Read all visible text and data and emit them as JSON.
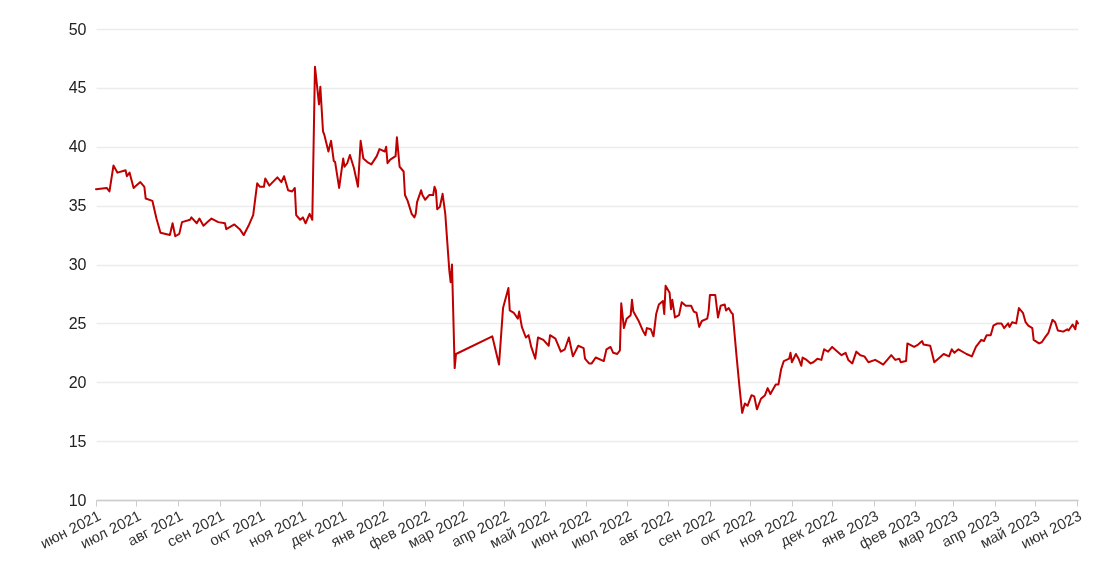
{
  "chart_data": {
    "type": "line",
    "x": [
      "2021-06-01",
      "2021-06-09",
      "2021-06-11",
      "2021-06-14",
      "2021-06-17",
      "2021-06-23",
      "2021-06-24",
      "2021-06-26",
      "2021-06-29",
      "2021-07-01",
      "2021-07-04",
      "2021-07-07",
      "2021-07-08",
      "2021-07-13",
      "2021-07-16",
      "2021-07-19",
      "2021-07-26",
      "2021-07-28",
      "2021-07-30",
      "2021-08-02",
      "2021-08-04",
      "2021-08-10",
      "2021-08-11",
      "2021-08-15",
      "2021-08-17",
      "2021-08-20",
      "2021-08-23",
      "2021-08-26",
      "2021-08-31",
      "2021-09-05",
      "2021-09-06",
      "2021-09-12",
      "2021-09-16",
      "2021-09-19",
      "2021-09-23",
      "2021-09-26",
      "2021-09-29",
      "2021-10-01",
      "2021-10-04",
      "2021-10-05",
      "2021-10-08",
      "2021-10-14",
      "2021-10-17",
      "2021-10-19",
      "2021-10-22",
      "2021-10-25",
      "2021-10-27",
      "2021-10-28",
      "2021-10-31",
      "2021-11-02",
      "2021-11-04",
      "2021-11-07",
      "2021-11-09",
      "2021-11-11",
      "2021-11-14",
      "2021-11-15",
      "2021-11-17",
      "2021-11-18",
      "2021-11-21",
      "2021-11-23",
      "2021-11-25",
      "2021-11-26",
      "2021-11-29",
      "2021-12-02",
      "2021-12-03",
      "2021-12-05",
      "2021-12-07",
      "2021-12-10",
      "2021-12-13",
      "2021-12-15",
      "2021-12-17",
      "2021-12-20",
      "2021-12-23",
      "2021-12-27",
      "2021-12-29",
      "2022-01-02",
      "2022-01-03",
      "2022-01-04",
      "2022-01-06",
      "2022-01-10",
      "2022-01-11",
      "2022-01-13",
      "2022-01-16",
      "2022-01-17",
      "2022-01-19",
      "2022-01-22",
      "2022-01-24",
      "2022-01-25",
      "2022-01-26",
      "2022-01-29",
      "2022-01-30",
      "2022-02-01",
      "2022-02-04",
      "2022-02-07",
      "2022-02-08",
      "2022-02-09",
      "2022-02-10",
      "2022-02-12",
      "2022-02-14",
      "2022-02-16",
      "2022-02-19",
      "2022-02-20",
      "2022-02-21",
      "2022-02-23",
      "2022-02-24",
      "2022-03-23",
      "2022-03-28",
      "2022-03-31",
      "2022-04-04",
      "2022-04-05",
      "2022-04-08",
      "2022-04-11",
      "2022-04-12",
      "2022-04-14",
      "2022-04-17",
      "2022-04-19",
      "2022-04-21",
      "2022-04-24",
      "2022-04-26",
      "2022-04-30",
      "2022-05-04",
      "2022-05-05",
      "2022-05-09",
      "2022-05-13",
      "2022-05-16",
      "2022-05-19",
      "2022-05-22",
      "2022-05-26",
      "2022-05-30",
      "2022-05-31",
      "2022-06-03",
      "2022-06-05",
      "2022-06-08",
      "2022-06-14",
      "2022-06-16",
      "2022-06-19",
      "2022-06-21",
      "2022-06-24",
      "2022-06-26",
      "2022-06-27",
      "2022-06-29",
      "2022-07-01",
      "2022-07-04",
      "2022-07-05",
      "2022-07-06",
      "2022-07-10",
      "2022-07-13",
      "2022-07-15",
      "2022-07-16",
      "2022-07-19",
      "2022-07-21",
      "2022-07-23",
      "2022-07-25",
      "2022-07-28",
      "2022-07-29",
      "2022-07-30",
      "2022-08-02",
      "2022-08-03",
      "2022-08-04",
      "2022-08-06",
      "2022-08-09",
      "2022-08-11",
      "2022-08-14",
      "2022-08-18",
      "2022-08-20",
      "2022-08-22",
      "2022-08-24",
      "2022-08-26",
      "2022-08-30",
      "2022-08-31",
      "2022-09-01",
      "2022-09-05",
      "2022-09-07",
      "2022-09-09",
      "2022-09-12",
      "2022-09-13",
      "2022-09-15",
      "2022-09-17",
      "2022-09-18",
      "2022-09-21",
      "2022-09-23",
      "2022-09-25",
      "2022-09-27",
      "2022-09-29",
      "2022-10-02",
      "2022-10-04",
      "2022-10-06",
      "2022-10-09",
      "2022-10-12",
      "2022-10-14",
      "2022-10-16",
      "2022-10-20",
      "2022-10-22",
      "2022-10-24",
      "2022-10-26",
      "2022-10-30",
      "2022-10-31",
      "2022-11-01",
      "2022-11-04",
      "2022-11-06",
      "2022-11-08",
      "2022-11-09",
      "2022-11-12",
      "2022-11-15",
      "2022-11-17",
      "2022-11-20",
      "2022-11-23",
      "2022-11-25",
      "2022-11-28",
      "2022-12-01",
      "2022-12-05",
      "2022-12-08",
      "2022-12-11",
      "2022-12-13",
      "2022-12-16",
      "2022-12-19",
      "2022-12-22",
      "2022-12-25",
      "2022-12-28",
      "2023-01-02",
      "2023-01-05",
      "2023-01-08",
      "2023-01-11",
      "2023-01-14",
      "2023-01-17",
      "2023-01-20",
      "2023-01-21",
      "2023-01-25",
      "2023-01-26",
      "2023-01-31",
      "2023-02-03",
      "2023-02-06",
      "2023-02-07",
      "2023-02-12",
      "2023-02-15",
      "2023-02-18",
      "2023-02-22",
      "2023-02-26",
      "2023-02-28",
      "2023-03-02",
      "2023-03-05",
      "2023-03-11",
      "2023-03-15",
      "2023-03-18",
      "2023-03-22",
      "2023-03-24",
      "2023-03-26",
      "2023-03-29",
      "2023-03-31",
      "2023-04-03",
      "2023-04-06",
      "2023-04-08",
      "2023-04-11",
      "2023-04-12",
      "2023-04-14",
      "2023-04-17",
      "2023-04-19",
      "2023-04-22",
      "2023-04-24",
      "2023-04-26",
      "2023-04-29",
      "2023-04-30",
      "2023-05-04",
      "2023-05-06",
      "2023-05-09",
      "2023-05-11",
      "2023-05-14",
      "2023-05-16",
      "2023-05-18",
      "2023-05-22",
      "2023-05-25",
      "2023-05-26",
      "2023-05-29",
      "2023-05-31",
      "2023-06-01",
      "2023-06-02"
    ],
    "series": [
      {
        "color": "#c00000",
        "values": [
          36.4,
          36.5,
          36.2,
          38.4,
          37.8,
          38.0,
          37.5,
          37.8,
          36.5,
          36.7,
          37.0,
          36.6,
          35.6,
          35.4,
          33.9,
          32.7,
          32.5,
          33.5,
          32.4,
          32.6,
          33.6,
          33.8,
          34.0,
          33.5,
          33.9,
          33.3,
          33.6,
          33.9,
          33.6,
          33.5,
          33.0,
          33.4,
          33.0,
          32.5,
          33.4,
          34.2,
          36.9,
          36.6,
          36.6,
          37.3,
          36.7,
          37.4,
          37.0,
          37.5,
          36.3,
          36.2,
          36.5,
          34.2,
          33.8,
          34.0,
          33.5,
          34.3,
          33.8,
          46.8,
          43.6,
          45.1,
          41.3,
          41.0,
          39.6,
          40.5,
          38.8,
          38.7,
          36.5,
          39.0,
          38.3,
          38.6,
          39.3,
          38.2,
          36.6,
          40.5,
          39.0,
          38.7,
          38.5,
          39.2,
          39.8,
          39.6,
          40.0,
          38.6,
          38.9,
          39.2,
          40.8,
          38.3,
          37.9,
          35.9,
          35.4,
          34.3,
          34.0,
          34.3,
          35.3,
          36.3,
          35.9,
          35.5,
          35.9,
          35.9,
          36.6,
          36.3,
          34.7,
          34.9,
          36.0,
          34.3,
          29.5,
          28.5,
          30.0,
          21.2,
          22.4,
          23.9,
          21.5,
          26.3,
          28.0,
          26.1,
          25.9,
          25.4,
          26.0,
          24.7,
          23.8,
          24.0,
          23.0,
          22.0,
          23.8,
          23.6,
          23.1,
          24.0,
          23.7,
          22.6,
          22.8,
          23.8,
          22.2,
          23.1,
          22.9,
          22.0,
          21.6,
          21.6,
          22.1,
          21.8,
          22.8,
          23.0,
          22.5,
          22.4,
          22.7,
          26.7,
          24.6,
          25.4,
          25.7,
          27.0,
          26.0,
          25.2,
          24.4,
          24.0,
          24.6,
          24.5,
          23.9,
          25.8,
          26.6,
          26.9,
          25.8,
          28.2,
          27.6,
          26.2,
          27.0,
          25.5,
          25.7,
          26.8,
          26.5,
          26.5,
          26.0,
          25.9,
          24.7,
          25.2,
          25.4,
          26.0,
          27.4,
          27.4,
          25.5,
          26.5,
          26.6,
          26.1,
          26.3,
          25.9,
          25.8,
          22.0,
          19.6,
          17.4,
          18.2,
          18.0,
          18.9,
          18.8,
          17.7,
          18.6,
          18.9,
          19.5,
          19.0,
          19.8,
          19.8,
          21.1,
          21.8,
          22.0,
          22.5,
          21.7,
          22.4,
          22.0,
          21.4,
          22.1,
          21.9,
          21.6,
          21.7,
          22.0,
          21.9,
          22.8,
          22.6,
          23.0,
          22.6,
          22.3,
          22.5,
          21.9,
          21.6,
          22.6,
          22.3,
          22.2,
          21.7,
          21.9,
          21.7,
          21.5,
          21.9,
          22.3,
          21.9,
          22.0,
          21.7,
          21.8,
          23.3,
          23.0,
          23.2,
          23.5,
          23.2,
          23.1,
          21.7,
          22.0,
          22.4,
          22.2,
          22.8,
          22.5,
          22.8,
          22.4,
          22.2,
          23.0,
          23.6,
          23.5,
          24.0,
          24.0,
          24.8,
          25.0,
          25.0,
          24.6,
          25.0,
          24.7,
          25.1,
          25.0,
          26.3,
          25.9,
          25.1,
          24.8,
          24.6,
          23.6,
          23.3,
          23.4,
          23.9,
          24.2,
          25.3,
          25.1,
          24.4,
          24.3,
          24.5,
          24.4,
          24.9,
          24.5,
          25.2,
          25.0
        ]
      }
    ],
    "xlim": [
      "2021-06-01",
      "2023-06-02"
    ],
    "xticks": [
      {
        "value": "2021-06-01",
        "label": "июн 2021"
      },
      {
        "value": "2021-07-01",
        "label": "июл 2021"
      },
      {
        "value": "2021-08-01",
        "label": "авг 2021"
      },
      {
        "value": "2021-09-01",
        "label": "сен 2021"
      },
      {
        "value": "2021-10-01",
        "label": "окт 2021"
      },
      {
        "value": "2021-11-01",
        "label": "ноя 2021"
      },
      {
        "value": "2021-12-01",
        "label": "дек 2021"
      },
      {
        "value": "2022-01-01",
        "label": "янв 2022"
      },
      {
        "value": "2022-02-01",
        "label": "фев 2022"
      },
      {
        "value": "2022-03-01",
        "label": "мар 2022"
      },
      {
        "value": "2022-04-01",
        "label": "апр 2022"
      },
      {
        "value": "2022-05-01",
        "label": "май 2022"
      },
      {
        "value": "2022-06-01",
        "label": "июн 2022"
      },
      {
        "value": "2022-07-01",
        "label": "июл 2022"
      },
      {
        "value": "2022-08-01",
        "label": "авг 2022"
      },
      {
        "value": "2022-09-01",
        "label": "сен 2022"
      },
      {
        "value": "2022-10-01",
        "label": "окт 2022"
      },
      {
        "value": "2022-11-01",
        "label": "ноя 2022"
      },
      {
        "value": "2022-12-01",
        "label": "дек 2022"
      },
      {
        "value": "2023-01-01",
        "label": "янв 2023"
      },
      {
        "value": "2023-02-01",
        "label": "фев 2023"
      },
      {
        "value": "2023-03-01",
        "label": "мар 2023"
      },
      {
        "value": "2023-04-01",
        "label": "апр 2023"
      },
      {
        "value": "2023-05-01",
        "label": "май 2023"
      },
      {
        "value": "2023-06-01",
        "label": "июн 2023"
      }
    ],
    "ylim": [
      10,
      50
    ],
    "yticks": [
      10,
      15,
      20,
      25,
      30,
      35,
      40,
      45,
      50
    ],
    "grid": "y"
  }
}
